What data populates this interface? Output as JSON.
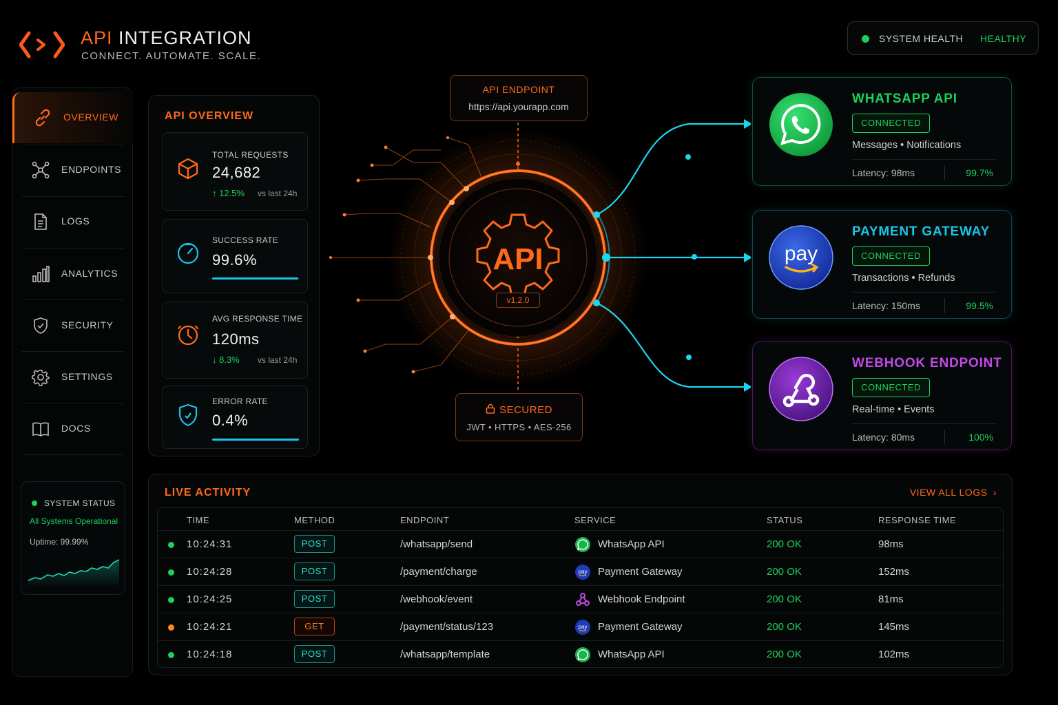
{
  "header": {
    "title_accent": "API",
    "title_rest": " INTEGRATION",
    "subtitle": "CONNECT. AUTOMATE. SCALE.",
    "health_label": "SYSTEM HEALTH",
    "health_value": "HEALTHY"
  },
  "sidebar": {
    "items": [
      {
        "label": "OVERVIEW",
        "icon": "link-icon"
      },
      {
        "label": "ENDPOINTS",
        "icon": "nodes-icon"
      },
      {
        "label": "LOGS",
        "icon": "document-icon"
      },
      {
        "label": "ANALYTICS",
        "icon": "bar-chart-icon"
      },
      {
        "label": "SECURITY",
        "icon": "shield-icon"
      },
      {
        "label": "SETTINGS",
        "icon": "gear-icon"
      },
      {
        "label": "DOCS",
        "icon": "book-icon"
      }
    ],
    "status": {
      "title": "SYSTEM STATUS",
      "message": "All Systems Operational",
      "uptime": "Uptime: 99.99%"
    }
  },
  "overview": {
    "title": "API OVERVIEW",
    "cards": [
      {
        "label": "TOTAL REQUESTS",
        "value": "24,682",
        "delta": "↑ 12.5%",
        "compare": "vs last 24h"
      },
      {
        "label": "SUCCESS RATE",
        "value": "99.6%",
        "progress": 0.996
      },
      {
        "label": "AVG RESPONSE TIME",
        "value": "120ms",
        "delta": "↓ 8.3%",
        "compare": "vs last 24h"
      },
      {
        "label": "ERROR RATE",
        "value": "0.4%",
        "progress": 1.0
      }
    ]
  },
  "hub": {
    "endpoint_title": "API ENDPOINT",
    "endpoint_url": "https://api.yourapp.com",
    "label": "API",
    "version": "v1.2.0",
    "secured_title": "SECURED",
    "secured_detail": "JWT • HTTPS • AES-256"
  },
  "services": [
    {
      "name": "WHATSAPP API",
      "status": "CONNECTED",
      "desc": "Messages • Notifications",
      "latency": "Latency: 98ms",
      "uptime": "99.7%",
      "color": "#1bd15c"
    },
    {
      "name": "PAYMENT GATEWAY",
      "status": "CONNECTED",
      "desc": "Transactions • Refunds",
      "latency": "Latency: 150ms",
      "uptime": "99.5%",
      "color": "#18c6e8",
      "logo_text": "pay"
    },
    {
      "name": "WEBHOOK ENDPOINT",
      "status": "CONNECTED",
      "desc": "Real-time • Events",
      "latency": "Latency: 80ms",
      "uptime": "100%",
      "color": "#c04ae8"
    }
  ],
  "live": {
    "title": "LIVE ACTIVITY",
    "view_all": "VIEW ALL LOGS",
    "columns": [
      "TIME",
      "METHOD",
      "ENDPOINT",
      "SERVICE",
      "STATUS",
      "RESPONSE TIME"
    ],
    "rows": [
      {
        "time": "10:24:31",
        "method": "POST",
        "endpoint": "/whatsapp/send",
        "service": "WhatsApp API",
        "status": "200 OK",
        "response": "98ms",
        "dot": "#1bd15c",
        "icon": "whatsapp-icon"
      },
      {
        "time": "10:24:28",
        "method": "POST",
        "endpoint": "/payment/charge",
        "service": "Payment Gateway",
        "status": "200 OK",
        "response": "152ms",
        "dot": "#1bd15c",
        "icon": "pay-icon"
      },
      {
        "time": "10:24:25",
        "method": "POST",
        "endpoint": "/webhook/event",
        "service": "Webhook Endpoint",
        "status": "200 OK",
        "response": "81ms",
        "dot": "#1bd15c",
        "icon": "webhook-icon"
      },
      {
        "time": "10:24:21",
        "method": "GET",
        "endpoint": "/payment/status/123",
        "service": "Payment Gateway",
        "status": "200 OK",
        "response": "145ms",
        "dot": "#ff8a1a",
        "icon": "pay-icon"
      },
      {
        "time": "10:24:18",
        "method": "POST",
        "endpoint": "/whatsapp/template",
        "service": "WhatsApp API",
        "status": "200 OK",
        "response": "102ms",
        "dot": "#1bd15c",
        "icon": "whatsapp-icon"
      }
    ]
  }
}
